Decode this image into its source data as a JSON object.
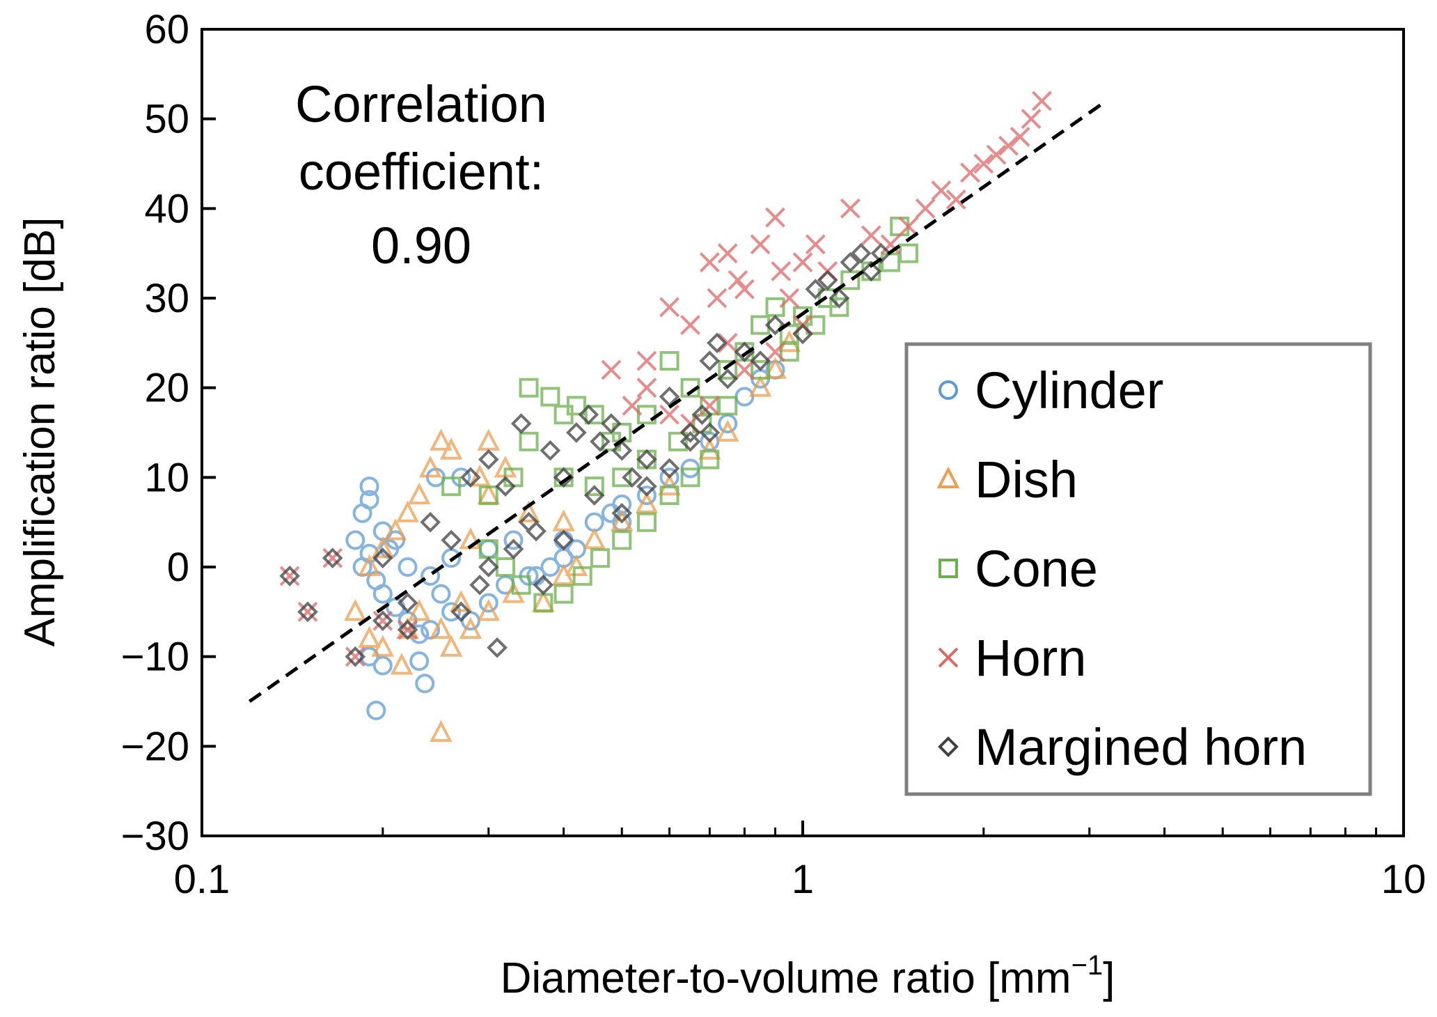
{
  "chart_data": {
    "type": "scatter",
    "title": "",
    "xlabel": "Diameter-to-volume ratio [mm−1]",
    "xlabel_main": "Diameter-to-volume ratio [mm",
    "xlabel_sup": "−1",
    "xlabel_close": "]",
    "ylabel": "Amplification ratio [dB]",
    "x_scale": "log",
    "xlim": [
      0.1,
      10
    ],
    "ylim": [
      -30,
      60
    ],
    "x_ticks": [
      {
        "value": 0.1,
        "label": "0.1"
      },
      {
        "value": 1,
        "label": "1"
      },
      {
        "value": 10,
        "label": "10"
      }
    ],
    "y_ticks": [
      {
        "value": -30,
        "label": "−30"
      },
      {
        "value": -20,
        "label": "−20"
      },
      {
        "value": -10,
        "label": "−10"
      },
      {
        "value": 0,
        "label": "0"
      },
      {
        "value": 10,
        "label": "10"
      },
      {
        "value": 20,
        "label": "20"
      },
      {
        "value": 30,
        "label": "30"
      },
      {
        "value": 40,
        "label": "40"
      },
      {
        "value": 50,
        "label": "50"
      },
      {
        "value": 60,
        "label": "60"
      }
    ],
    "grid": false,
    "legend_position": "right",
    "annotation": [
      "Correlation",
      "coefficient:",
      "0.90"
    ],
    "fit_line": {
      "style": "dashed",
      "color": "#000000",
      "x": [
        0.12,
        3.2
      ],
      "y": [
        -15,
        52
      ]
    },
    "series": [
      {
        "name": "Cylinder",
        "marker": "circle",
        "color": "#5b9bd5",
        "points": [
          [
            0.19,
            9
          ],
          [
            0.19,
            7.5
          ],
          [
            0.185,
            6
          ],
          [
            0.2,
            4
          ],
          [
            0.205,
            2
          ],
          [
            0.21,
            3
          ],
          [
            0.18,
            3
          ],
          [
            0.19,
            1.5
          ],
          [
            0.185,
            0
          ],
          [
            0.195,
            -1.5
          ],
          [
            0.2,
            -3
          ],
          [
            0.21,
            -4.5
          ],
          [
            0.22,
            -6
          ],
          [
            0.23,
            -7.5
          ],
          [
            0.19,
            -10
          ],
          [
            0.2,
            -11
          ],
          [
            0.195,
            -16
          ],
          [
            0.23,
            -10.5
          ],
          [
            0.235,
            -13
          ],
          [
            0.24,
            -7
          ],
          [
            0.245,
            10
          ],
          [
            0.27,
            10
          ],
          [
            0.25,
            -3
          ],
          [
            0.26,
            -5
          ],
          [
            0.28,
            -6
          ],
          [
            0.3,
            -4
          ],
          [
            0.32,
            -2
          ],
          [
            0.35,
            -1
          ],
          [
            0.38,
            0
          ],
          [
            0.4,
            1
          ],
          [
            0.42,
            2
          ],
          [
            0.45,
            5
          ],
          [
            0.48,
            6
          ],
          [
            0.5,
            7
          ],
          [
            0.55,
            8
          ],
          [
            0.6,
            10
          ],
          [
            0.65,
            11
          ],
          [
            0.7,
            14
          ],
          [
            0.75,
            16
          ],
          [
            0.8,
            19
          ],
          [
            0.85,
            21
          ],
          [
            0.9,
            22
          ],
          [
            0.3,
            2
          ],
          [
            0.33,
            3
          ],
          [
            0.36,
            -1
          ],
          [
            0.4,
            3
          ],
          [
            0.5,
            5
          ],
          [
            0.22,
            0
          ],
          [
            0.24,
            -1
          ],
          [
            0.26,
            1
          ]
        ]
      },
      {
        "name": "Dish",
        "marker": "triangle",
        "color": "#ed9e4e",
        "points": [
          [
            0.25,
            14
          ],
          [
            0.26,
            13
          ],
          [
            0.3,
            14
          ],
          [
            0.24,
            11
          ],
          [
            0.23,
            8
          ],
          [
            0.22,
            6
          ],
          [
            0.21,
            4
          ],
          [
            0.2,
            2
          ],
          [
            0.19,
            0
          ],
          [
            0.18,
            -5
          ],
          [
            0.19,
            -8
          ],
          [
            0.2,
            -9
          ],
          [
            0.215,
            -11
          ],
          [
            0.22,
            -7
          ],
          [
            0.23,
            -5
          ],
          [
            0.25,
            -7
          ],
          [
            0.26,
            -9
          ],
          [
            0.25,
            -18.5
          ],
          [
            0.27,
            -4
          ],
          [
            0.28,
            -7
          ],
          [
            0.3,
            -5
          ],
          [
            0.33,
            -3
          ],
          [
            0.37,
            -4
          ],
          [
            0.4,
            -1
          ],
          [
            0.42,
            0
          ],
          [
            0.45,
            3
          ],
          [
            0.5,
            5
          ],
          [
            0.55,
            7
          ],
          [
            0.6,
            9
          ],
          [
            0.7,
            13
          ],
          [
            0.75,
            15
          ],
          [
            0.85,
            20
          ],
          [
            0.9,
            22
          ],
          [
            0.95,
            25
          ],
          [
            0.28,
            3
          ],
          [
            0.3,
            8
          ],
          [
            0.35,
            6
          ],
          [
            0.4,
            5
          ],
          [
            0.29,
            10
          ],
          [
            0.32,
            11
          ]
        ]
      },
      {
        "name": "Cone",
        "marker": "square",
        "color": "#6ab04c",
        "points": [
          [
            0.26,
            9
          ],
          [
            0.3,
            8
          ],
          [
            0.33,
            10
          ],
          [
            0.35,
            14
          ],
          [
            0.35,
            20
          ],
          [
            0.38,
            19
          ],
          [
            0.4,
            17
          ],
          [
            0.42,
            18
          ],
          [
            0.45,
            17
          ],
          [
            0.48,
            14
          ],
          [
            0.5,
            15
          ],
          [
            0.55,
            17
          ],
          [
            0.6,
            23
          ],
          [
            0.65,
            20
          ],
          [
            0.7,
            18
          ],
          [
            0.75,
            22
          ],
          [
            0.8,
            24
          ],
          [
            0.85,
            27
          ],
          [
            0.9,
            29
          ],
          [
            0.95,
            26
          ],
          [
            1.0,
            28
          ],
          [
            1.05,
            27
          ],
          [
            1.1,
            30
          ],
          [
            1.2,
            32
          ],
          [
            1.3,
            33
          ],
          [
            1.4,
            34
          ],
          [
            1.45,
            38
          ],
          [
            1.5,
            35
          ],
          [
            0.3,
            2
          ],
          [
            0.32,
            0
          ],
          [
            0.34,
            -2
          ],
          [
            0.37,
            -4
          ],
          [
            0.4,
            -3
          ],
          [
            0.43,
            -1
          ],
          [
            0.46,
            1
          ],
          [
            0.5,
            3
          ],
          [
            0.55,
            5
          ],
          [
            0.6,
            8
          ],
          [
            0.65,
            10
          ],
          [
            0.7,
            12
          ],
          [
            0.5,
            10
          ],
          [
            0.45,
            9
          ],
          [
            0.4,
            10
          ],
          [
            0.55,
            12
          ],
          [
            0.62,
            14
          ],
          [
            0.68,
            16
          ],
          [
            0.75,
            18
          ],
          [
            0.85,
            22
          ],
          [
            0.95,
            24
          ],
          [
            1.15,
            29
          ]
        ]
      },
      {
        "name": "Horn",
        "marker": "x",
        "color": "#e06666",
        "points": [
          [
            0.14,
            -1
          ],
          [
            0.15,
            -5
          ],
          [
            0.165,
            1
          ],
          [
            0.18,
            -10
          ],
          [
            0.2,
            -6
          ],
          [
            0.22,
            -7
          ],
          [
            0.48,
            22
          ],
          [
            0.55,
            20
          ],
          [
            0.6,
            29
          ],
          [
            0.65,
            27
          ],
          [
            0.7,
            34
          ],
          [
            0.72,
            30
          ],
          [
            0.75,
            35
          ],
          [
            0.78,
            32
          ],
          [
            0.8,
            31
          ],
          [
            0.85,
            36
          ],
          [
            0.9,
            39
          ],
          [
            0.92,
            33
          ],
          [
            0.95,
            30
          ],
          [
            1.0,
            34
          ],
          [
            1.05,
            36
          ],
          [
            1.1,
            33
          ],
          [
            1.2,
            40
          ],
          [
            1.3,
            37
          ],
          [
            1.4,
            36
          ],
          [
            1.5,
            38
          ],
          [
            1.6,
            40
          ],
          [
            1.7,
            42
          ],
          [
            1.8,
            41
          ],
          [
            1.9,
            44
          ],
          [
            2.0,
            45
          ],
          [
            2.1,
            46
          ],
          [
            2.2,
            47
          ],
          [
            2.3,
            48
          ],
          [
            2.4,
            50
          ],
          [
            2.5,
            52
          ],
          [
            0.6,
            17
          ],
          [
            0.65,
            16
          ],
          [
            0.7,
            18
          ],
          [
            0.8,
            22
          ],
          [
            0.9,
            24
          ],
          [
            1.0,
            27
          ],
          [
            0.55,
            23
          ],
          [
            0.52,
            18
          ],
          [
            0.75,
            25
          ]
        ]
      },
      {
        "name": "Margined horn",
        "marker": "diamond",
        "color": "#404040",
        "points": [
          [
            0.14,
            -1
          ],
          [
            0.15,
            -5
          ],
          [
            0.165,
            1
          ],
          [
            0.18,
            -10
          ],
          [
            0.2,
            -6
          ],
          [
            0.22,
            -7
          ],
          [
            0.2,
            1
          ],
          [
            0.22,
            -4
          ],
          [
            0.24,
            5
          ],
          [
            0.26,
            3
          ],
          [
            0.28,
            10
          ],
          [
            0.3,
            12
          ],
          [
            0.32,
            9
          ],
          [
            0.31,
            -9
          ],
          [
            0.27,
            -5
          ],
          [
            0.29,
            -2
          ],
          [
            0.33,
            2
          ],
          [
            0.35,
            5
          ],
          [
            0.37,
            -2
          ],
          [
            0.4,
            3
          ],
          [
            0.42,
            15
          ],
          [
            0.44,
            17
          ],
          [
            0.46,
            14
          ],
          [
            0.48,
            16
          ],
          [
            0.5,
            13
          ],
          [
            0.52,
            10
          ],
          [
            0.55,
            12
          ],
          [
            0.6,
            19
          ],
          [
            0.65,
            15
          ],
          [
            0.7,
            23
          ],
          [
            0.72,
            25
          ],
          [
            0.75,
            21
          ],
          [
            0.8,
            24
          ],
          [
            0.85,
            23
          ],
          [
            0.9,
            27
          ],
          [
            1.0,
            26
          ],
          [
            1.05,
            31
          ],
          [
            1.1,
            32
          ],
          [
            1.15,
            30
          ],
          [
            1.2,
            34
          ],
          [
            1.25,
            35
          ],
          [
            1.3,
            33
          ],
          [
            1.35,
            35
          ],
          [
            0.38,
            13
          ],
          [
            0.4,
            10
          ],
          [
            0.45,
            8
          ],
          [
            0.5,
            6
          ],
          [
            0.55,
            9
          ],
          [
            0.6,
            11
          ],
          [
            0.65,
            14
          ],
          [
            0.68,
            17
          ],
          [
            0.7,
            15
          ],
          [
            0.34,
            16
          ],
          [
            0.36,
            4
          ],
          [
            0.3,
            0
          ]
        ]
      }
    ]
  }
}
